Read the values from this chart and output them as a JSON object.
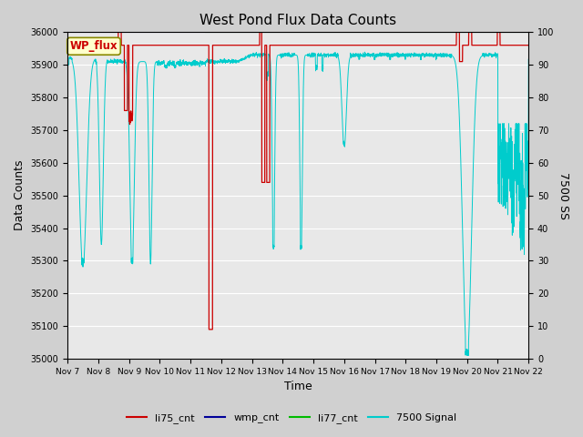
{
  "title": "West Pond Flux Data Counts",
  "xlabel": "Time",
  "ylabel_left": "Data Counts",
  "ylabel_right": "7500 SS",
  "ylim_left": [
    35000,
    36000
  ],
  "ylim_right": [
    0,
    100
  ],
  "fig_bg": "#d0d0d0",
  "plot_bg": "#e8e8e8",
  "wp_flux_label": "WP_flux",
  "wp_flux_label_color": "#cc0000",
  "wp_flux_bg": "#ffffcc",
  "wp_flux_border": "#888800",
  "legend_labels": [
    "li75_cnt",
    "wmp_cnt",
    "li77_cnt",
    "7500 Signal"
  ],
  "legend_colors": [
    "#cc0000",
    "#000099",
    "#00bb00",
    "#00cccc"
  ],
  "tick_labels": [
    "Nov 7",
    "Nov 8",
    "Nov 9",
    "Nov 10",
    "Nov 11",
    "Nov 12",
    "Nov 13",
    "Nov 14",
    "Nov 15",
    "Nov 16",
    "Nov 17",
    "Nov 18",
    "Nov 19",
    "Nov 20",
    "Nov 21",
    "Nov 22"
  ],
  "grid_color": "#ffffff",
  "grid_lw": 0.8,
  "left_ticks": [
    35000,
    35100,
    35200,
    35300,
    35400,
    35500,
    35600,
    35700,
    35800,
    35900,
    36000
  ],
  "right_ticks": [
    0,
    10,
    20,
    30,
    40,
    50,
    60,
    70,
    80,
    90,
    100
  ]
}
